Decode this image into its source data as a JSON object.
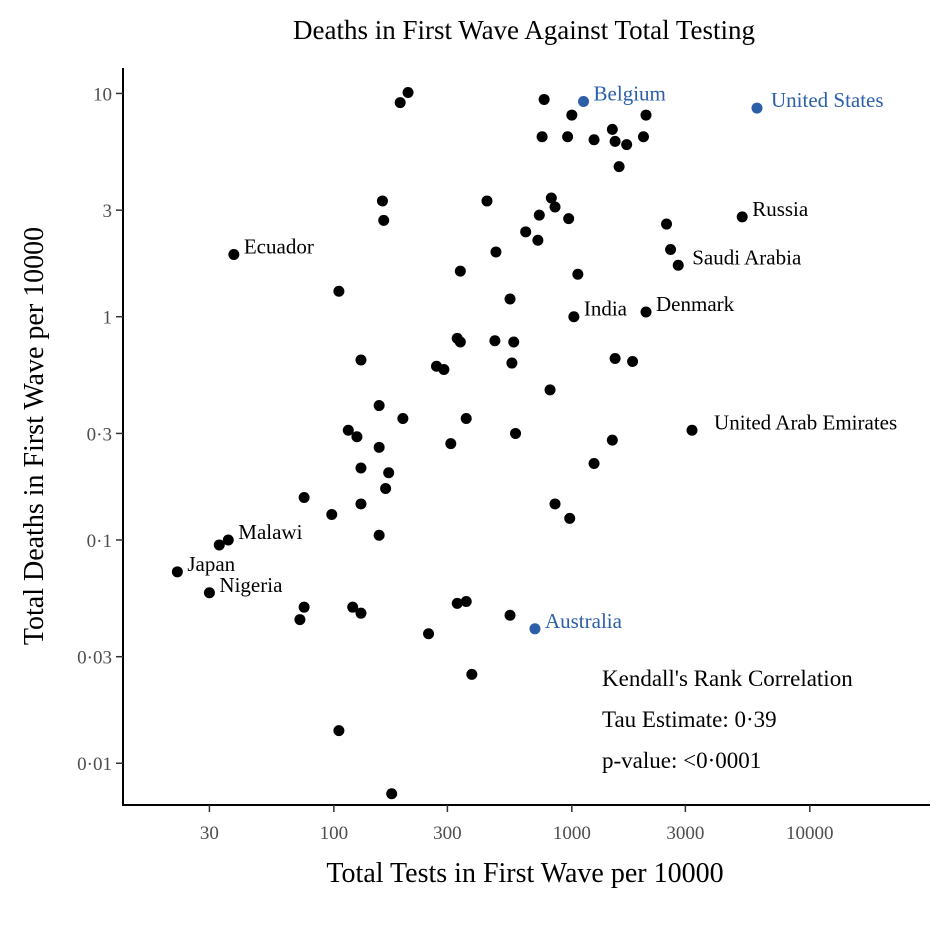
{
  "chart_data": {
    "type": "scatter",
    "title": "Deaths in First Wave Against Total Testing",
    "xlabel": "Total Tests in First Wave per 10000",
    "ylabel": "Total Deaths in First Wave per 10000",
    "x_scale": "log10",
    "y_scale": "log10",
    "xlim": [
      13,
      32000
    ],
    "ylim": [
      0.0065,
      13
    ],
    "x_ticks": [
      {
        "value": 30,
        "label": "30"
      },
      {
        "value": 100,
        "label": "100"
      },
      {
        "value": 300,
        "label": "300"
      },
      {
        "value": 1000,
        "label": "1000"
      },
      {
        "value": 3000,
        "label": "3000"
      },
      {
        "value": 10000,
        "label": "10000"
      }
    ],
    "y_ticks": [
      {
        "value": 0.01,
        "label": "0·01"
      },
      {
        "value": 0.03,
        "label": "0·03"
      },
      {
        "value": 0.1,
        "label": "0·1"
      },
      {
        "value": 0.3,
        "label": "0·3"
      },
      {
        "value": 1,
        "label": "1"
      },
      {
        "value": 3,
        "label": "3"
      },
      {
        "value": 10,
        "label": "10"
      }
    ],
    "grid": false,
    "colors": {
      "default": "#000000",
      "highlight": "#2c5fa8"
    },
    "labeled_points": [
      {
        "label": "Belgium",
        "x": 1120,
        "y": 9.2,
        "highlight": true
      },
      {
        "label": "United States",
        "x": 6000,
        "y": 8.6,
        "highlight": true
      },
      {
        "label": "Australia",
        "x": 700,
        "y": 0.04,
        "highlight": true
      },
      {
        "label": "Ecuador",
        "x": 38,
        "y": 1.9,
        "highlight": false
      },
      {
        "label": "Russia",
        "x": 5200,
        "y": 2.8,
        "highlight": false
      },
      {
        "label": "Saudi Arabia",
        "x": 2800,
        "y": 1.7,
        "highlight": false
      },
      {
        "label": "India",
        "x": 1020,
        "y": 1.0,
        "highlight": false
      },
      {
        "label": "Denmark",
        "x": 2050,
        "y": 1.05,
        "highlight": false
      },
      {
        "label": "United Arab Emirates",
        "x": 3200,
        "y": 0.31,
        "highlight": false
      },
      {
        "label": "Malawi",
        "x": 36,
        "y": 0.1,
        "highlight": false
      },
      {
        "label": "Japan",
        "x": 22,
        "y": 0.072,
        "highlight": false
      },
      {
        "label": "Nigeria",
        "x": 30,
        "y": 0.058,
        "highlight": false
      }
    ],
    "points": [
      [
        190,
        9.1
      ],
      [
        205,
        10.1
      ],
      [
        765,
        9.4
      ],
      [
        1000,
        8.0
      ],
      [
        1480,
        6.9
      ],
      [
        2050,
        8.0
      ],
      [
        750,
        6.4
      ],
      [
        960,
        6.4
      ],
      [
        1240,
        6.2
      ],
      [
        1700,
        5.9
      ],
      [
        1520,
        6.1
      ],
      [
        2000,
        6.4
      ],
      [
        1580,
        4.7
      ],
      [
        160,
        3.3
      ],
      [
        162,
        2.7
      ],
      [
        440,
        3.3
      ],
      [
        820,
        3.4
      ],
      [
        850,
        3.1
      ],
      [
        730,
        2.85
      ],
      [
        970,
        2.75
      ],
      [
        640,
        2.4
      ],
      [
        720,
        2.2
      ],
      [
        480,
        1.95
      ],
      [
        340,
        1.6
      ],
      [
        1060,
        1.55
      ],
      [
        2500,
        2.6
      ],
      [
        2600,
        2.0
      ],
      [
        105,
        1.3
      ],
      [
        550,
        1.2
      ],
      [
        330,
        0.8
      ],
      [
        340,
        0.77
      ],
      [
        475,
        0.78
      ],
      [
        570,
        0.77
      ],
      [
        1520,
        0.65
      ],
      [
        1800,
        0.63
      ],
      [
        130,
        0.64
      ],
      [
        270,
        0.6
      ],
      [
        290,
        0.58
      ],
      [
        560,
        0.62
      ],
      [
        810,
        0.47
      ],
      [
        155,
        0.4
      ],
      [
        195,
        0.35
      ],
      [
        360,
        0.35
      ],
      [
        115,
        0.31
      ],
      [
        125,
        0.29
      ],
      [
        310,
        0.27
      ],
      [
        580,
        0.3
      ],
      [
        1480,
        0.28
      ],
      [
        155,
        0.26
      ],
      [
        1240,
        0.22
      ],
      [
        130,
        0.21
      ],
      [
        170,
        0.2
      ],
      [
        165,
        0.17
      ],
      [
        75,
        0.155
      ],
      [
        130,
        0.145
      ],
      [
        98,
        0.13
      ],
      [
        850,
        0.145
      ],
      [
        980,
        0.125
      ],
      [
        155,
        0.105
      ],
      [
        33,
        0.095
      ],
      [
        75,
        0.05
      ],
      [
        72,
        0.044
      ],
      [
        120,
        0.05
      ],
      [
        130,
        0.047
      ],
      [
        330,
        0.052
      ],
      [
        360,
        0.053
      ],
      [
        550,
        0.046
      ],
      [
        250,
        0.038
      ],
      [
        380,
        0.025
      ],
      [
        105,
        0.014
      ],
      [
        175,
        0.0073
      ]
    ]
  },
  "annotation": {
    "line1": "Kendall's Rank Correlation",
    "line2": "Tau Estimate: 0·39",
    "line3": "p-value: <0·0001"
  }
}
